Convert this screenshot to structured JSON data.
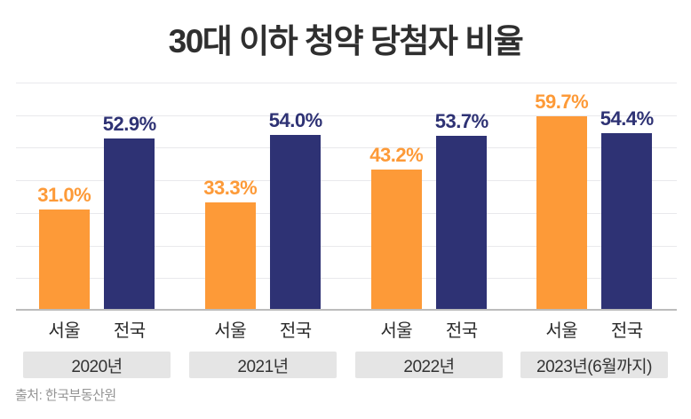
{
  "title": "30대 이하 청약 당첨자 비율",
  "source": "출처: 한국부동산원",
  "colors": {
    "seoul": "#FD9A38",
    "national": "#2E3274",
    "title_text": "#2F2F2F",
    "grid": "#E9E9EC",
    "axis": "#BCBCBC",
    "year_box_bg": "#E5E5E5",
    "year_box_text": "#333333",
    "bar_label_text": "#2B2B2B",
    "source_text": "#949494"
  },
  "chart_data": {
    "type": "bar",
    "title": "30대 이하 청약 당첨자 비율",
    "categories": [
      "2020년",
      "2021년",
      "2022년",
      "2023년(6월까지)"
    ],
    "series": [
      {
        "name": "서울",
        "color_key": "seoul",
        "values": [
          31.0,
          33.3,
          43.2,
          59.7
        ],
        "labels": [
          "31.0%",
          "33.3%",
          "43.2%",
          "59.7%"
        ]
      },
      {
        "name": "전국",
        "color_key": "national",
        "values": [
          52.9,
          54.0,
          53.7,
          54.4
        ],
        "labels": [
          "52.9%",
          "54.0%",
          "53.7%",
          "54.4%"
        ]
      }
    ],
    "xlabel": "",
    "ylabel": "",
    "ylim": [
      0,
      70
    ],
    "grid_step": 10,
    "grid": true,
    "legend_position": "none",
    "value_labels_shown": true,
    "annotation": "출처: 한국부동산원"
  }
}
